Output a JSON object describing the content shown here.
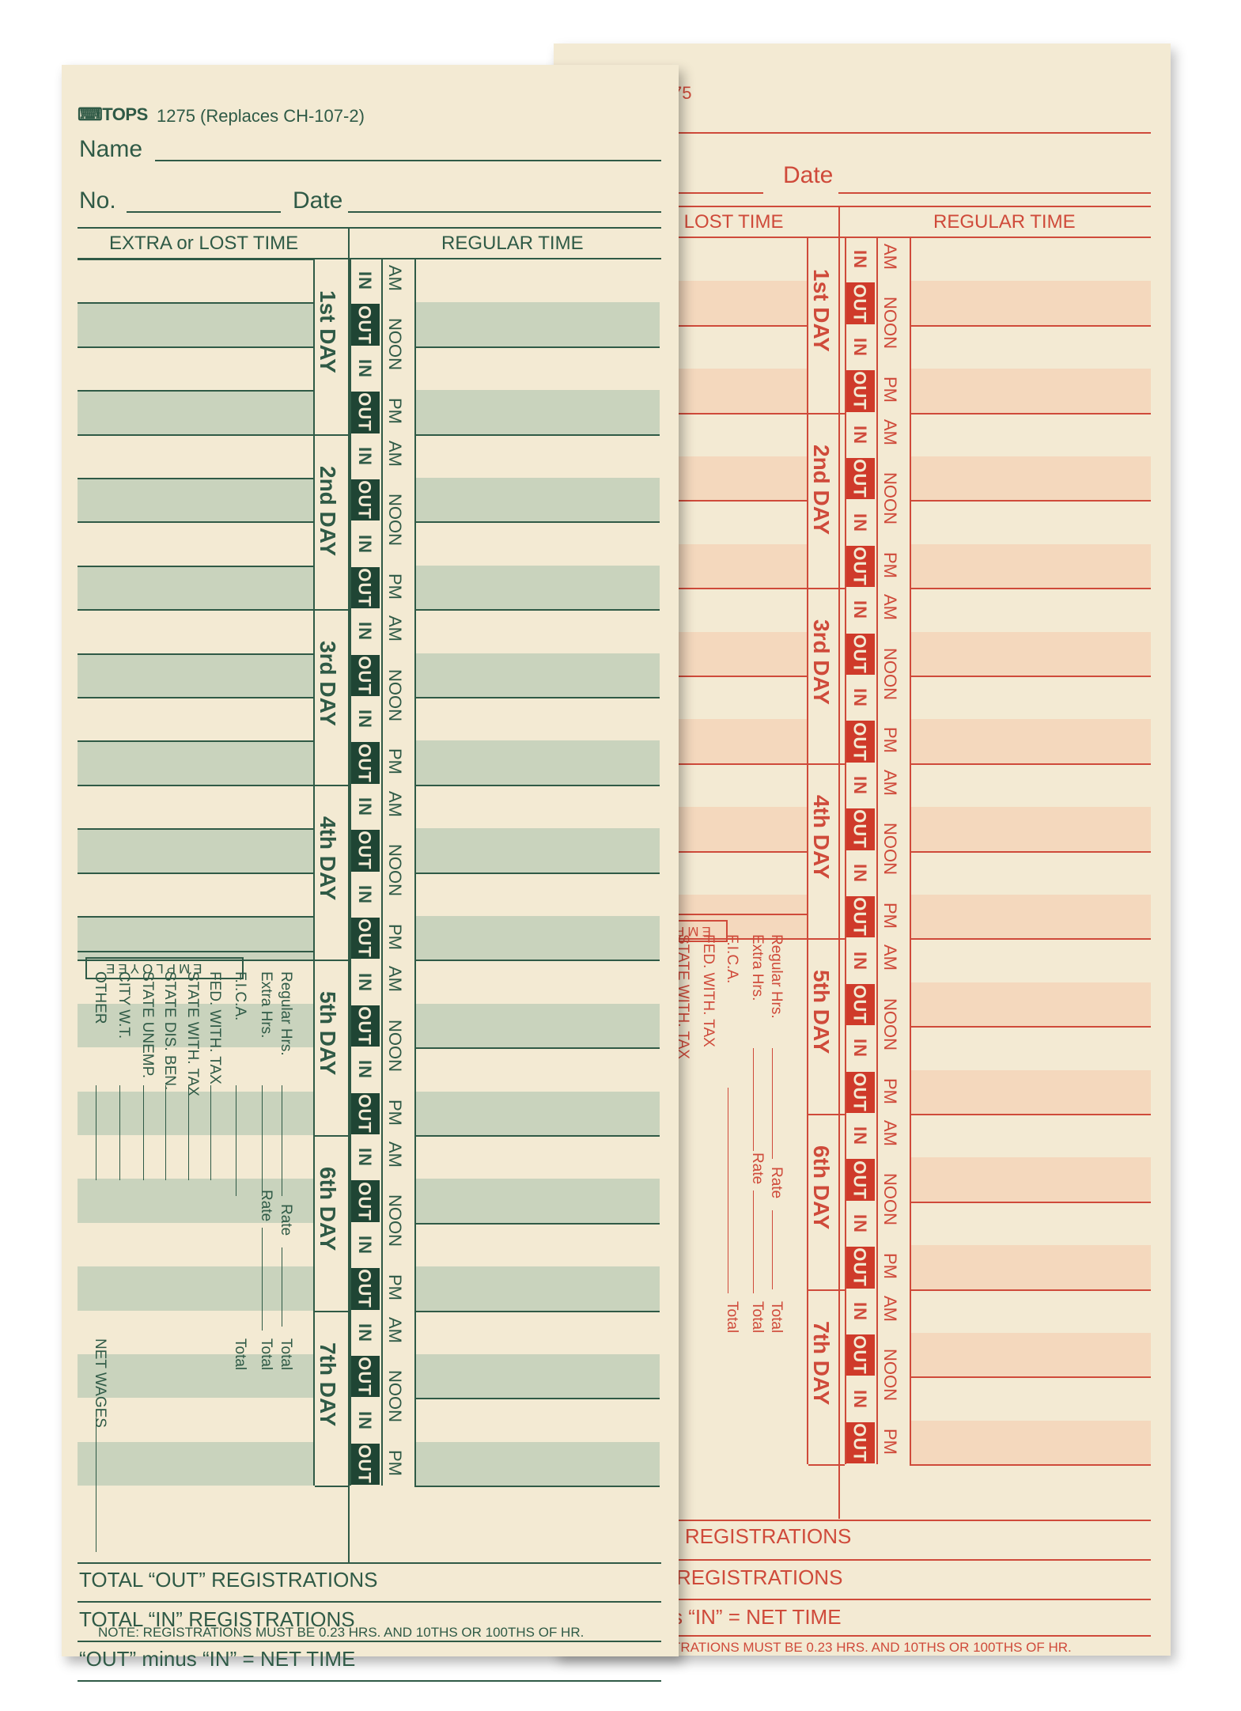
{
  "header": {
    "brand": "TOPS",
    "form_number": "1275 (Replaces CH-107-2)",
    "back_form_fragment": "75",
    "name_label": "Name",
    "no_label": "No.",
    "date_label": "Date"
  },
  "columns": {
    "extra_lost": "EXTRA or LOST TIME",
    "extra_lost_partial": "r LOST TIME",
    "regular": "REGULAR TIME"
  },
  "days": [
    "1st DAY",
    "2nd DAY",
    "3rd DAY",
    "4th DAY",
    "5th DAY",
    "6th DAY",
    "7th DAY"
  ],
  "slots": [
    "IN",
    "OUT",
    "IN",
    "OUT"
  ],
  "periods": [
    "AM",
    "NOON",
    "PM"
  ],
  "payroll": {
    "code_label": "EMPLOYEE",
    "code_label_partial": "EMP",
    "regular_hrs": "Regular Hrs.",
    "extra_hrs": "Extra Hrs.",
    "rate": "Rate",
    "total": "Total",
    "items": [
      "F.I.C.A.",
      "FED. WITH. TAX",
      "STATE WITH. TAX",
      "STATE DIS. BEN.",
      "STATE UNEMP.",
      "CITY W.T.",
      "OTHER"
    ],
    "back_items": [
      "F.I.C.A.",
      "FED. WITH. TAX",
      "STATE WITH. TAX"
    ],
    "net_wages": "NET WAGES"
  },
  "totals": {
    "out_reg": "TOTAL “OUT” REGISTRATIONS",
    "in_reg": "TOTAL “IN” REGISTRATIONS",
    "net_time": "“OUT” minus “IN” = NET TIME",
    "back_out_reg": "” REGISTRATIONS",
    "back_in_reg": "REGISTRATIONS",
    "back_net_time": "s “IN” = NET TIME",
    "note": "NOTE: REGISTRATIONS MUST BE 0.23 HRS. AND 10THS OR 100THS OF HR.",
    "back_note": "TRATIONS MUST BE 0.23 HRS. AND 10THS OR 100THS OF HR."
  },
  "colors": {
    "green": "#2f5a46",
    "red": "#cf4a3a",
    "paper": "#f3ead3"
  }
}
